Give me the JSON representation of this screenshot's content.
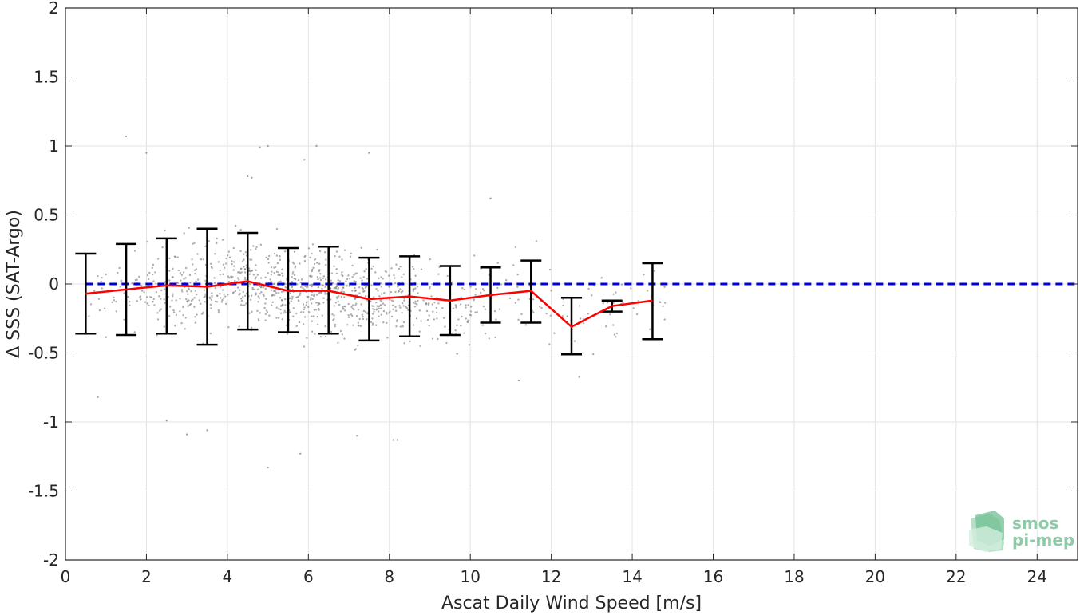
{
  "chart_data": {
    "type": "scatter",
    "xlabel": "Ascat Daily Wind Speed [m/s]",
    "ylabel": "Δ SSS (SAT-Argo)",
    "xlim": [
      0,
      25
    ],
    "ylim": [
      -2,
      2
    ],
    "x_ticks": [
      0,
      2,
      4,
      6,
      8,
      10,
      12,
      14,
      16,
      18,
      20,
      22,
      24
    ],
    "y_ticks": [
      2,
      1.5,
      1,
      0.5,
      0,
      -0.5,
      -1,
      -1.5,
      -2
    ],
    "y_tick_labels": [
      "2",
      "1.5",
      "1",
      "0.5",
      "0",
      "-0.5",
      "-1",
      "-1.5",
      "-2"
    ],
    "grid": true,
    "scatter_points": {
      "color": "#8c8c8c",
      "approx_count": 1100,
      "x_range": [
        0.5,
        15
      ],
      "y_center": -0.05,
      "y_spread": 0.25,
      "outliers": [
        {
          "x": 1.5,
          "y": 1.07
        },
        {
          "x": 2.0,
          "y": 0.95
        },
        {
          "x": 4.5,
          "y": 0.78
        },
        {
          "x": 4.6,
          "y": 0.77
        },
        {
          "x": 4.8,
          "y": 0.99
        },
        {
          "x": 5.0,
          "y": 1.0
        },
        {
          "x": 6.2,
          "y": 1.0
        },
        {
          "x": 5.9,
          "y": 0.9
        },
        {
          "x": 7.5,
          "y": 0.95
        },
        {
          "x": 10.5,
          "y": 0.62
        },
        {
          "x": 0.8,
          "y": -0.82
        },
        {
          "x": 3.0,
          "y": -1.09
        },
        {
          "x": 3.5,
          "y": -1.06
        },
        {
          "x": 5.0,
          "y": -1.33
        },
        {
          "x": 5.8,
          "y": -1.23
        },
        {
          "x": 7.2,
          "y": -1.1
        },
        {
          "x": 8.1,
          "y": -1.13
        },
        {
          "x": 8.2,
          "y": -1.13
        },
        {
          "x": 11.2,
          "y": -0.7
        },
        {
          "x": 2.5,
          "y": -0.99
        }
      ]
    },
    "mean_line": {
      "color": "#ff0000",
      "x": [
        0.5,
        1.5,
        2.5,
        3.5,
        4.5,
        5.5,
        6.5,
        7.5,
        8.5,
        9.5,
        10.5,
        11.5,
        12.5,
        13.5,
        14.5
      ],
      "y": [
        -0.07,
        -0.04,
        -0.01,
        -0.02,
        0.02,
        -0.05,
        -0.05,
        -0.11,
        -0.09,
        -0.12,
        -0.08,
        -0.05,
        -0.31,
        -0.16,
        -0.12
      ]
    },
    "error_bars": {
      "color": "#000000",
      "x": [
        0.5,
        1.5,
        2.5,
        3.5,
        4.5,
        5.5,
        6.5,
        7.5,
        8.5,
        9.5,
        10.5,
        11.5,
        12.5,
        13.5,
        14.5
      ],
      "lower": [
        -0.36,
        -0.37,
        -0.36,
        -0.44,
        -0.33,
        -0.35,
        -0.36,
        -0.41,
        -0.38,
        -0.37,
        -0.28,
        -0.28,
        -0.51,
        -0.2,
        -0.4
      ],
      "upper": [
        0.22,
        0.29,
        0.33,
        0.4,
        0.37,
        0.26,
        0.27,
        0.19,
        0.2,
        0.13,
        0.12,
        0.17,
        -0.1,
        -0.12,
        0.15
      ]
    },
    "reference_line": {
      "y": 0,
      "color": "#0000dd",
      "style": "dashed"
    }
  },
  "logo": {
    "line1": "smos",
    "line2": "pi-mep"
  }
}
